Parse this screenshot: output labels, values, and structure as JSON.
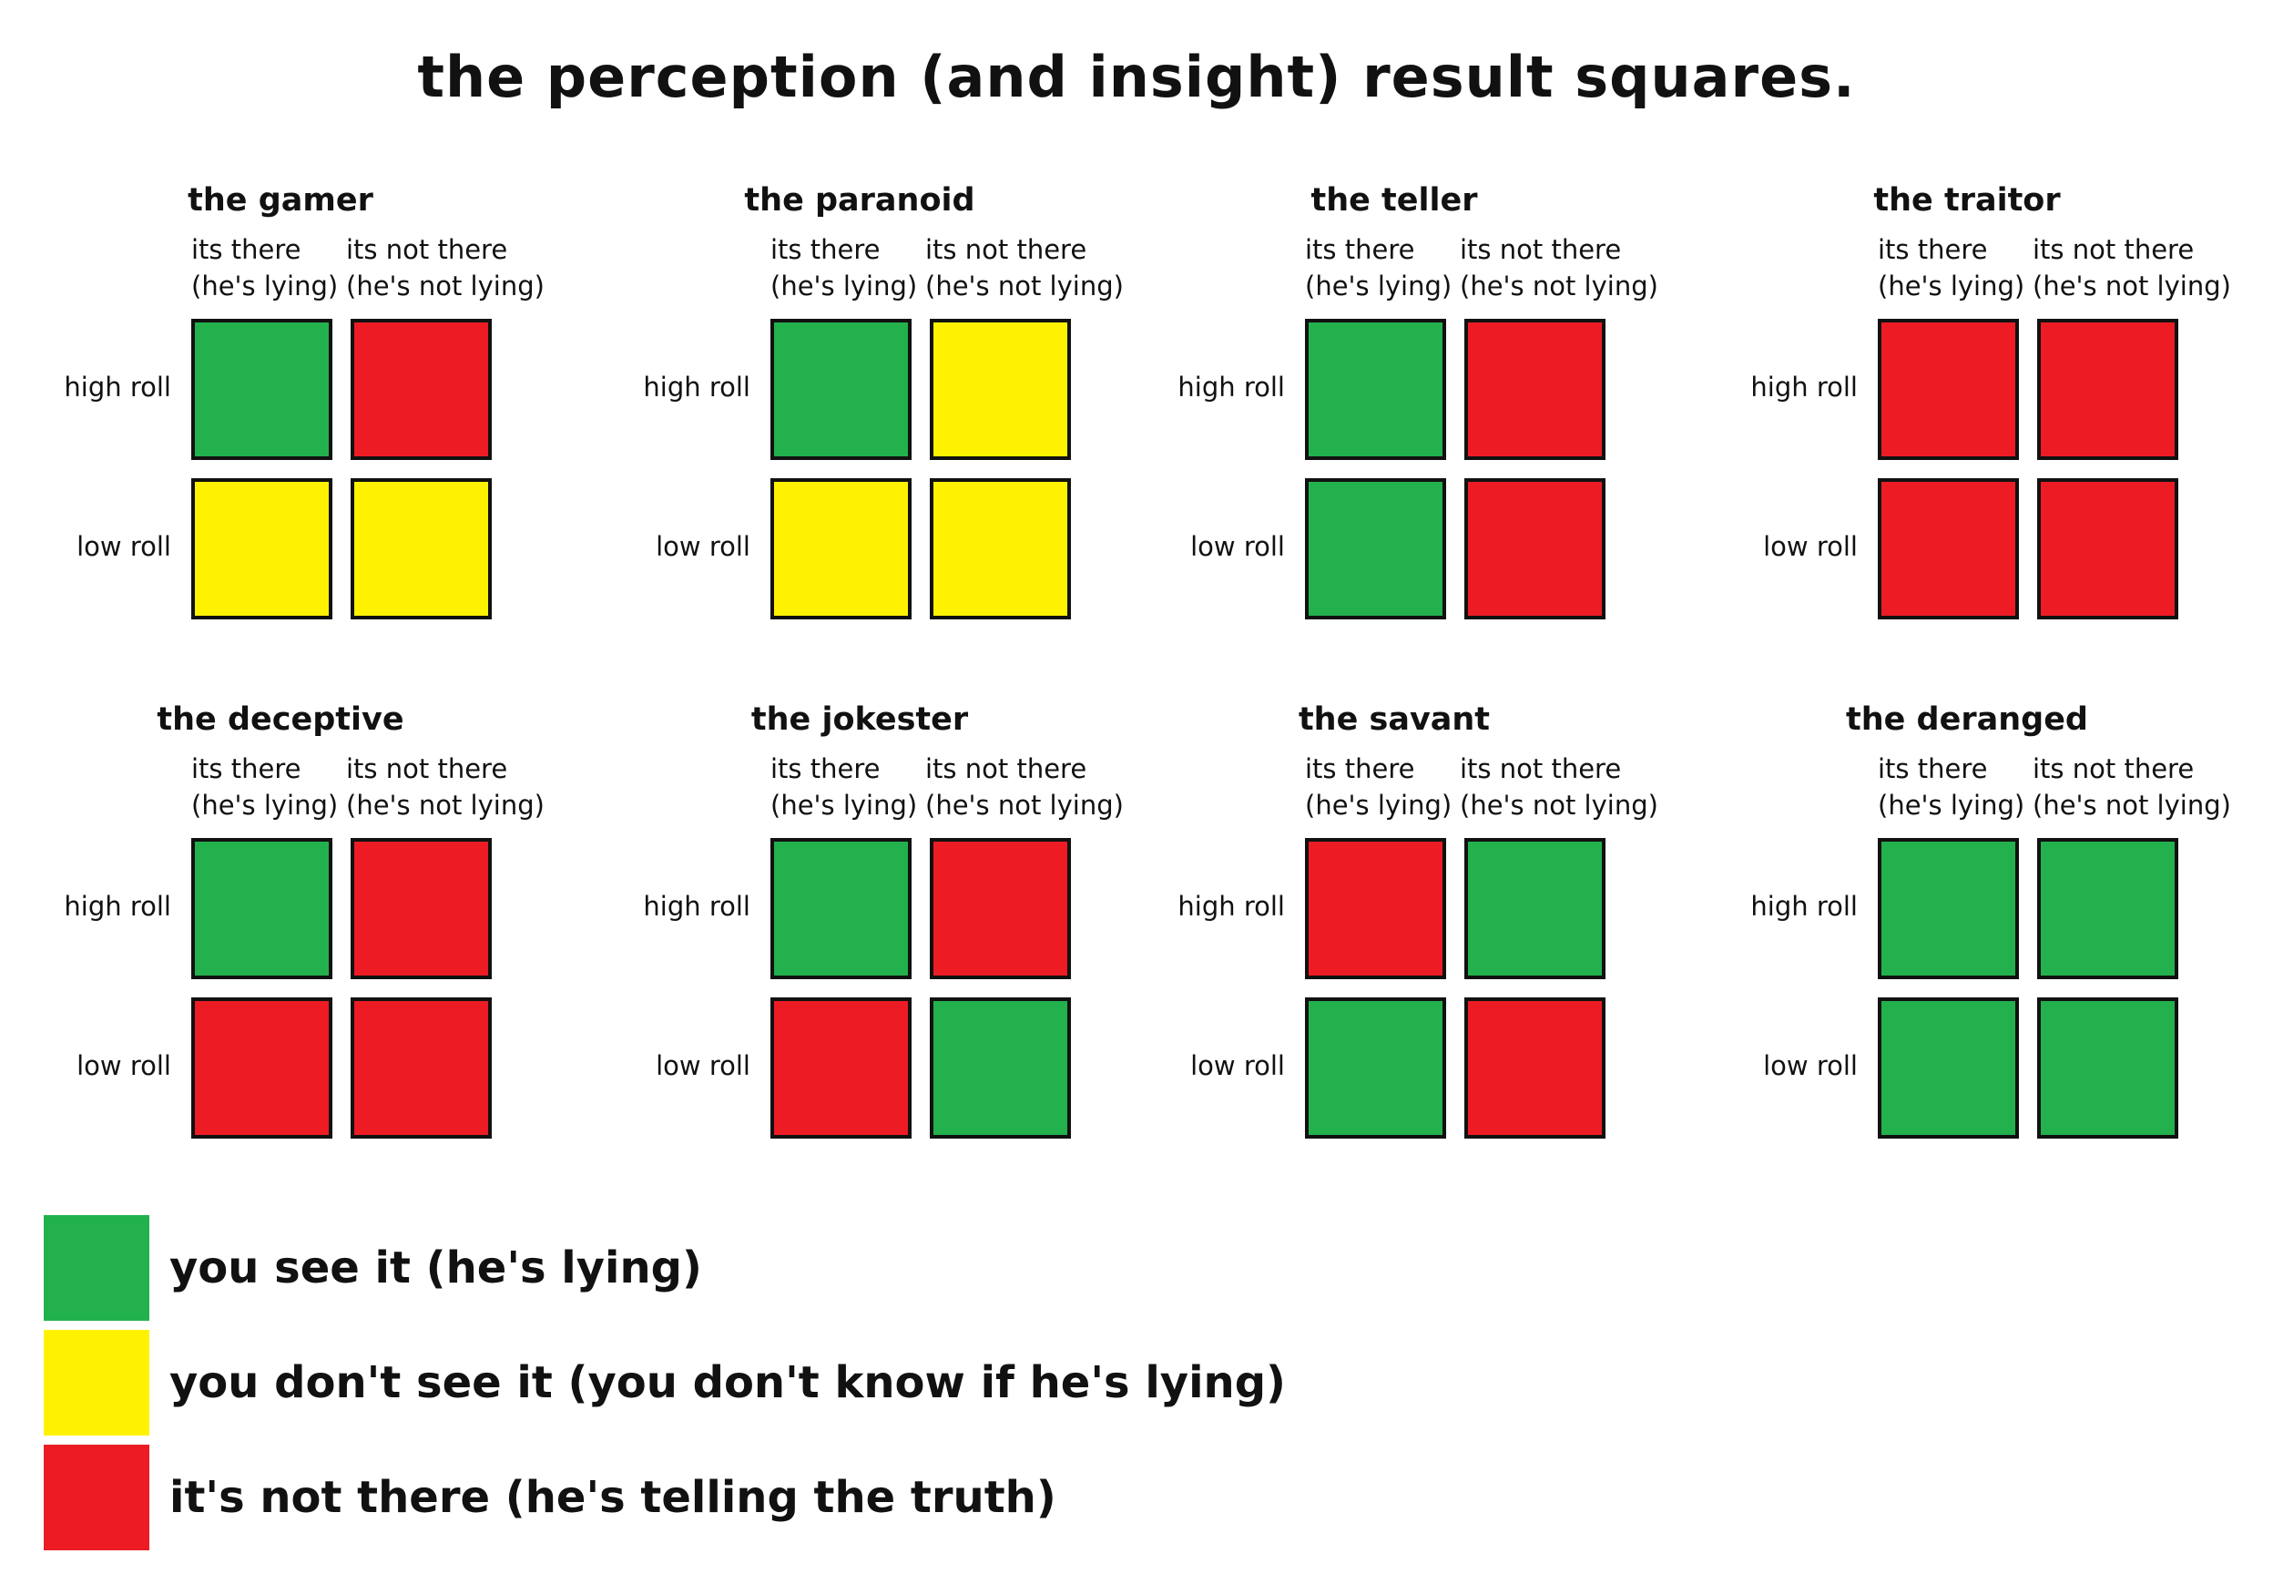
{
  "title": "the perception (and insight) result squares.",
  "colors": {
    "green": "#22b14c",
    "yellow": "#fff200",
    "red": "#ed1c24"
  },
  "row_labels": [
    "high roll",
    "low roll"
  ],
  "col_labels": [
    {
      "line1": "its there",
      "line2": "(he's lying)"
    },
    {
      "line1": "its not there",
      "line2": "(he's not lying)"
    }
  ],
  "panels": [
    {
      "name": "the gamer",
      "grid": [
        [
          "green",
          "red"
        ],
        [
          "yellow",
          "yellow"
        ]
      ]
    },
    {
      "name": "the paranoid",
      "grid": [
        [
          "green",
          "yellow"
        ],
        [
          "yellow",
          "yellow"
        ]
      ]
    },
    {
      "name": "the teller",
      "grid": [
        [
          "green",
          "red"
        ],
        [
          "green",
          "red"
        ]
      ]
    },
    {
      "name": "the traitor",
      "grid": [
        [
          "red",
          "red"
        ],
        [
          "red",
          "red"
        ]
      ]
    },
    {
      "name": "the deceptive",
      "grid": [
        [
          "green",
          "red"
        ],
        [
          "red",
          "red"
        ]
      ]
    },
    {
      "name": "the jokester",
      "grid": [
        [
          "green",
          "red"
        ],
        [
          "red",
          "green"
        ]
      ]
    },
    {
      "name": "the savant",
      "grid": [
        [
          "red",
          "green"
        ],
        [
          "green",
          "red"
        ]
      ]
    },
    {
      "name": "the deranged",
      "grid": [
        [
          "green",
          "green"
        ],
        [
          "green",
          "green"
        ]
      ]
    }
  ],
  "legend": [
    {
      "color": "green",
      "text": "you see it (he's lying)"
    },
    {
      "color": "yellow",
      "text": "you don't see it (you don't know if he's lying)"
    },
    {
      "color": "red",
      "text": "it's not there (he's telling the truth)"
    }
  ]
}
